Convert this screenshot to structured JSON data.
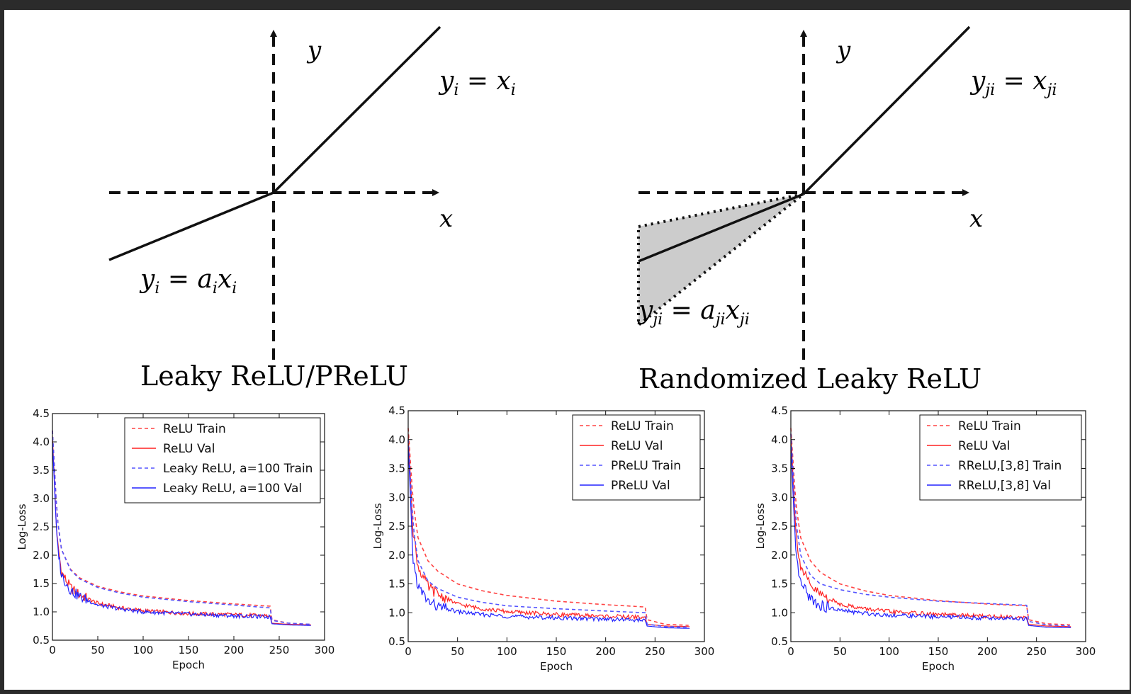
{
  "diagrams": [
    {
      "caption": "Leaky ReLU/PReLU",
      "x_label": "x",
      "y_label": "y",
      "positive_eq": {
        "lhs": "y",
        "lhs_sub": "i",
        "rhs": "x",
        "rhs_sub": "i"
      },
      "negative_eq": {
        "lhs": "y",
        "lhs_sub": "i",
        "rhs_a": "a",
        "rhs_a_sub": "i",
        "rhs_x": "x",
        "rhs_x_sub": "i"
      }
    },
    {
      "caption": "Randomized Leaky ReLU",
      "x_label": "x",
      "y_label": "y",
      "positive_eq": {
        "lhs": "y",
        "lhs_sub": "ji",
        "rhs": "x",
        "rhs_sub": "ji"
      },
      "negative_eq": {
        "lhs": "y",
        "lhs_sub": "ji",
        "rhs_a": "a",
        "rhs_a_sub": "ji",
        "rhs_x": "x",
        "rhs_x_sub": "ji"
      }
    }
  ],
  "chart_data": [
    {
      "type": "line",
      "xlabel": "Epoch",
      "ylabel": "Log-Loss",
      "xlim": [
        0,
        300
      ],
      "ylim": [
        0.5,
        4.5
      ],
      "xticks": [
        "0",
        "50",
        "100",
        "150",
        "200",
        "250",
        "300"
      ],
      "yticks": [
        "0.5",
        "1.0",
        "1.5",
        "2.0",
        "2.5",
        "3.0",
        "3.5",
        "4.0",
        "4.5"
      ],
      "legend_position": "top-right",
      "series": [
        {
          "name": "ReLU Train",
          "color": "#ff4444",
          "style": "dashed",
          "x": [
            0,
            5,
            10,
            20,
            30,
            50,
            75,
            100,
            150,
            200,
            240,
            242,
            260,
            285
          ],
          "y": [
            4.2,
            2.7,
            2.1,
            1.75,
            1.6,
            1.45,
            1.35,
            1.28,
            1.2,
            1.14,
            1.1,
            0.86,
            0.8,
            0.78
          ]
        },
        {
          "name": "ReLU Val",
          "color": "#ff2222",
          "style": "solid",
          "x": [
            0,
            5,
            10,
            20,
            30,
            50,
            75,
            100,
            150,
            200,
            240,
            242,
            260,
            285
          ],
          "y": [
            4.1,
            2.3,
            1.7,
            1.42,
            1.3,
            1.15,
            1.07,
            1.02,
            0.97,
            0.95,
            0.93,
            0.8,
            0.78,
            0.77
          ]
        },
        {
          "name": "Leaky ReLU, a=100 Train",
          "color": "#5555ff",
          "style": "dashed",
          "x": [
            0,
            5,
            10,
            20,
            30,
            50,
            75,
            100,
            150,
            200,
            240,
            242,
            260,
            285
          ],
          "y": [
            4.2,
            2.7,
            2.1,
            1.74,
            1.58,
            1.43,
            1.33,
            1.26,
            1.18,
            1.12,
            1.07,
            0.85,
            0.8,
            0.78
          ]
        },
        {
          "name": "Leaky ReLU, a=100 Val",
          "color": "#2222ff",
          "style": "solid",
          "x": [
            0,
            5,
            10,
            20,
            30,
            50,
            75,
            100,
            150,
            200,
            240,
            242,
            260,
            285
          ],
          "y": [
            4.0,
            2.25,
            1.65,
            1.38,
            1.27,
            1.12,
            1.05,
            1.0,
            0.96,
            0.93,
            0.91,
            0.79,
            0.77,
            0.76
          ]
        }
      ]
    },
    {
      "type": "line",
      "xlabel": "Epoch",
      "ylabel": "Log-Loss",
      "xlim": [
        0,
        300
      ],
      "ylim": [
        0.5,
        4.5
      ],
      "xticks": [
        "0",
        "50",
        "100",
        "150",
        "200",
        "250",
        "300"
      ],
      "yticks": [
        "0.5",
        "1.0",
        "1.5",
        "2.0",
        "2.5",
        "3.0",
        "3.5",
        "4.0",
        "4.5"
      ],
      "legend_position": "top-right",
      "series": [
        {
          "name": "ReLU Train",
          "color": "#ff4444",
          "style": "dashed",
          "x": [
            0,
            5,
            10,
            20,
            30,
            50,
            75,
            100,
            150,
            200,
            240,
            242,
            260,
            285
          ],
          "y": [
            4.2,
            2.9,
            2.3,
            1.9,
            1.72,
            1.5,
            1.38,
            1.3,
            1.2,
            1.14,
            1.1,
            0.88,
            0.8,
            0.78
          ]
        },
        {
          "name": "ReLU Val",
          "color": "#ff2222",
          "style": "solid",
          "x": [
            0,
            5,
            10,
            20,
            30,
            50,
            75,
            100,
            150,
            200,
            240,
            242,
            260,
            285
          ],
          "y": [
            4.1,
            2.4,
            1.8,
            1.45,
            1.32,
            1.15,
            1.07,
            1.02,
            0.97,
            0.94,
            0.92,
            0.8,
            0.77,
            0.76
          ]
        },
        {
          "name": "PReLU Train",
          "color": "#5555ff",
          "style": "dashed",
          "x": [
            0,
            5,
            10,
            20,
            30,
            50,
            75,
            100,
            150,
            200,
            240,
            242,
            260,
            285
          ],
          "y": [
            4.0,
            2.5,
            1.9,
            1.55,
            1.42,
            1.27,
            1.18,
            1.12,
            1.07,
            1.03,
            1.0,
            0.8,
            0.76,
            0.75
          ]
        },
        {
          "name": "PReLU Val",
          "color": "#2222ff",
          "style": "solid",
          "x": [
            0,
            5,
            10,
            20,
            30,
            50,
            75,
            100,
            150,
            200,
            240,
            242,
            260,
            285
          ],
          "y": [
            3.9,
            1.9,
            1.45,
            1.2,
            1.1,
            1.02,
            0.97,
            0.94,
            0.91,
            0.89,
            0.87,
            0.77,
            0.74,
            0.73
          ]
        }
      ]
    },
    {
      "type": "line",
      "xlabel": "Epoch",
      "ylabel": "Log-Loss",
      "xlim": [
        0,
        300
      ],
      "ylim": [
        0.5,
        4.5
      ],
      "xticks": [
        "0",
        "50",
        "100",
        "150",
        "200",
        "250",
        "300"
      ],
      "yticks": [
        "0.5",
        "1.0",
        "1.5",
        "2.0",
        "2.5",
        "3.0",
        "3.5",
        "4.0",
        "4.5"
      ],
      "legend_position": "top-right",
      "series": [
        {
          "name": "ReLU Train",
          "color": "#ff4444",
          "style": "dashed",
          "x": [
            0,
            5,
            10,
            20,
            30,
            50,
            75,
            100,
            150,
            200,
            240,
            242,
            260,
            285
          ],
          "y": [
            4.2,
            2.9,
            2.3,
            1.9,
            1.7,
            1.5,
            1.38,
            1.3,
            1.21,
            1.15,
            1.12,
            0.88,
            0.81,
            0.79
          ]
        },
        {
          "name": "ReLU Val",
          "color": "#ff2222",
          "style": "solid",
          "x": [
            0,
            5,
            10,
            20,
            30,
            50,
            75,
            100,
            150,
            200,
            240,
            242,
            260,
            285
          ],
          "y": [
            4.1,
            2.4,
            1.8,
            1.45,
            1.32,
            1.15,
            1.07,
            1.02,
            0.97,
            0.94,
            0.92,
            0.8,
            0.77,
            0.76
          ]
        },
        {
          "name": "RReLU,[3,8] Train",
          "color": "#5555ff",
          "style": "dashed",
          "x": [
            0,
            5,
            10,
            20,
            30,
            50,
            75,
            100,
            150,
            200,
            240,
            242,
            260,
            285
          ],
          "y": [
            4.1,
            2.6,
            2.0,
            1.65,
            1.5,
            1.4,
            1.32,
            1.27,
            1.2,
            1.16,
            1.13,
            0.85,
            0.79,
            0.77
          ]
        },
        {
          "name": "RReLU,[3,8] Val",
          "color": "#2222ff",
          "style": "solid",
          "x": [
            0,
            5,
            10,
            20,
            30,
            50,
            75,
            100,
            150,
            200,
            240,
            242,
            260,
            285
          ],
          "y": [
            3.9,
            2.0,
            1.5,
            1.25,
            1.12,
            1.04,
            0.99,
            0.96,
            0.93,
            0.91,
            0.89,
            0.78,
            0.75,
            0.74
          ]
        }
      ]
    }
  ]
}
